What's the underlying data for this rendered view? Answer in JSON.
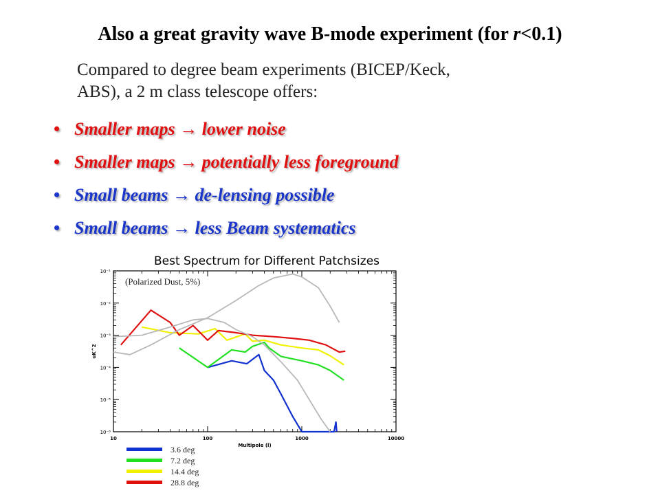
{
  "slide": {
    "title_main": "Also a great gravity wave B-mode experiment (for ",
    "title_italic": "r",
    "title_end": "<0.1)",
    "intro_line1": "Compared to degree beam experiments (BICEP/Keck,",
    "intro_line2": "ABS), a 2 m class telescope offers:",
    "bullet_marker": "•",
    "bullets": [
      {
        "text": "Smaller maps → lower noise",
        "color": "#e01010"
      },
      {
        "text": "Smaller maps → potentially less foreground",
        "color": "#e01010"
      },
      {
        "text": "Small beams →  de-lensing possible",
        "color": "#1a35c9"
      },
      {
        "text": "Small beams → less Beam systematics",
        "color": "#1a35c9"
      }
    ]
  },
  "chart_data": {
    "type": "line",
    "title": "Best Spectrum for Different Patchsizes",
    "annotation": "(Polarized Dust, 5%)",
    "xlabel": "Multipole (l)",
    "ylabel": "uK^2",
    "x_scale": "log",
    "y_scale": "log",
    "xlim": [
      10,
      10000
    ],
    "ylim": [
      1e-06,
      0.1
    ],
    "x_ticks": [
      "10",
      "100",
      "1000",
      "10000"
    ],
    "y_ticks": [
      "10⁻⁶",
      "10⁻⁵",
      "10⁻⁴",
      "10⁻³",
      "10⁻²",
      "10⁻¹"
    ],
    "grid": false,
    "series": [
      {
        "name": "3.6 deg",
        "color": "#1030d0",
        "points": [
          [
            100,
            0.0001
          ],
          [
            180,
            0.00016
          ],
          [
            260,
            0.00013
          ],
          [
            350,
            0.00025
          ],
          [
            400,
            8e-05
          ],
          [
            500,
            4e-05
          ],
          [
            600,
            1.5e-05
          ],
          [
            800,
            3e-06
          ],
          [
            1000,
            1e-06
          ],
          [
            2200,
            1e-06
          ],
          [
            2300,
            2e-06
          ],
          [
            2350,
            1e-06
          ]
        ]
      },
      {
        "name": "7.2 deg",
        "color": "#20e020",
        "points": [
          [
            50,
            0.0004
          ],
          [
            100,
            0.0001
          ],
          [
            180,
            0.00035
          ],
          [
            250,
            0.0003
          ],
          [
            300,
            0.00045
          ],
          [
            400,
            0.0006
          ],
          [
            450,
            0.0004
          ],
          [
            600,
            0.00022
          ],
          [
            1000,
            0.00016
          ],
          [
            1500,
            0.00012
          ],
          [
            2000,
            8e-05
          ],
          [
            2800,
            4e-05
          ]
        ]
      },
      {
        "name": "14.4 deg",
        "color": "#f0f000",
        "points": [
          [
            20,
            0.0018
          ],
          [
            40,
            0.0012
          ],
          [
            80,
            0.0011
          ],
          [
            120,
            0.0016
          ],
          [
            160,
            0.0007
          ],
          [
            250,
            0.0011
          ],
          [
            300,
            0.00065
          ],
          [
            400,
            0.0007
          ],
          [
            600,
            0.0005
          ],
          [
            1000,
            0.0004
          ],
          [
            1500,
            0.00035
          ],
          [
            2000,
            0.00023
          ],
          [
            2800,
            0.00012
          ]
        ]
      },
      {
        "name": "28.8 deg",
        "color": "#e01010",
        "points": [
          [
            12,
            0.0005
          ],
          [
            25,
            0.006
          ],
          [
            40,
            0.0025
          ],
          [
            50,
            0.001
          ],
          [
            70,
            0.002
          ],
          [
            100,
            0.0007
          ],
          [
            130,
            0.0014
          ],
          [
            200,
            0.0012
          ],
          [
            300,
            0.001
          ],
          [
            500,
            0.0009
          ],
          [
            800,
            0.0008
          ],
          [
            1200,
            0.0007
          ],
          [
            1800,
            0.0005
          ],
          [
            2500,
            0.0003
          ],
          [
            2900,
            0.00032
          ]
        ]
      },
      {
        "name": "",
        "color": "#b8b8b8",
        "points": [
          [
            10,
            0.0003
          ],
          [
            15,
            0.00025
          ],
          [
            25,
            0.0005
          ],
          [
            50,
            0.0015
          ],
          [
            100,
            0.0035
          ],
          [
            200,
            0.012
          ],
          [
            350,
            0.035
          ],
          [
            500,
            0.06
          ],
          [
            800,
            0.08
          ],
          [
            1000,
            0.065
          ],
          [
            1500,
            0.03
          ],
          [
            2000,
            0.008
          ],
          [
            2500,
            0.0025
          ]
        ]
      },
      {
        "name": "",
        "color": "#b8b8b8",
        "points": [
          [
            10,
            0.0009
          ],
          [
            20,
            0.001
          ],
          [
            40,
            0.0018
          ],
          [
            70,
            0.003
          ],
          [
            100,
            0.0033
          ],
          [
            150,
            0.0025
          ],
          [
            200,
            0.0015
          ],
          [
            300,
            0.0009
          ],
          [
            400,
            0.0005
          ],
          [
            600,
            0.00015
          ],
          [
            900,
            4e-05
          ],
          [
            1200,
            1e-05
          ],
          [
            1600,
            2.5e-06
          ],
          [
            2000,
            1e-06
          ]
        ]
      }
    ]
  }
}
